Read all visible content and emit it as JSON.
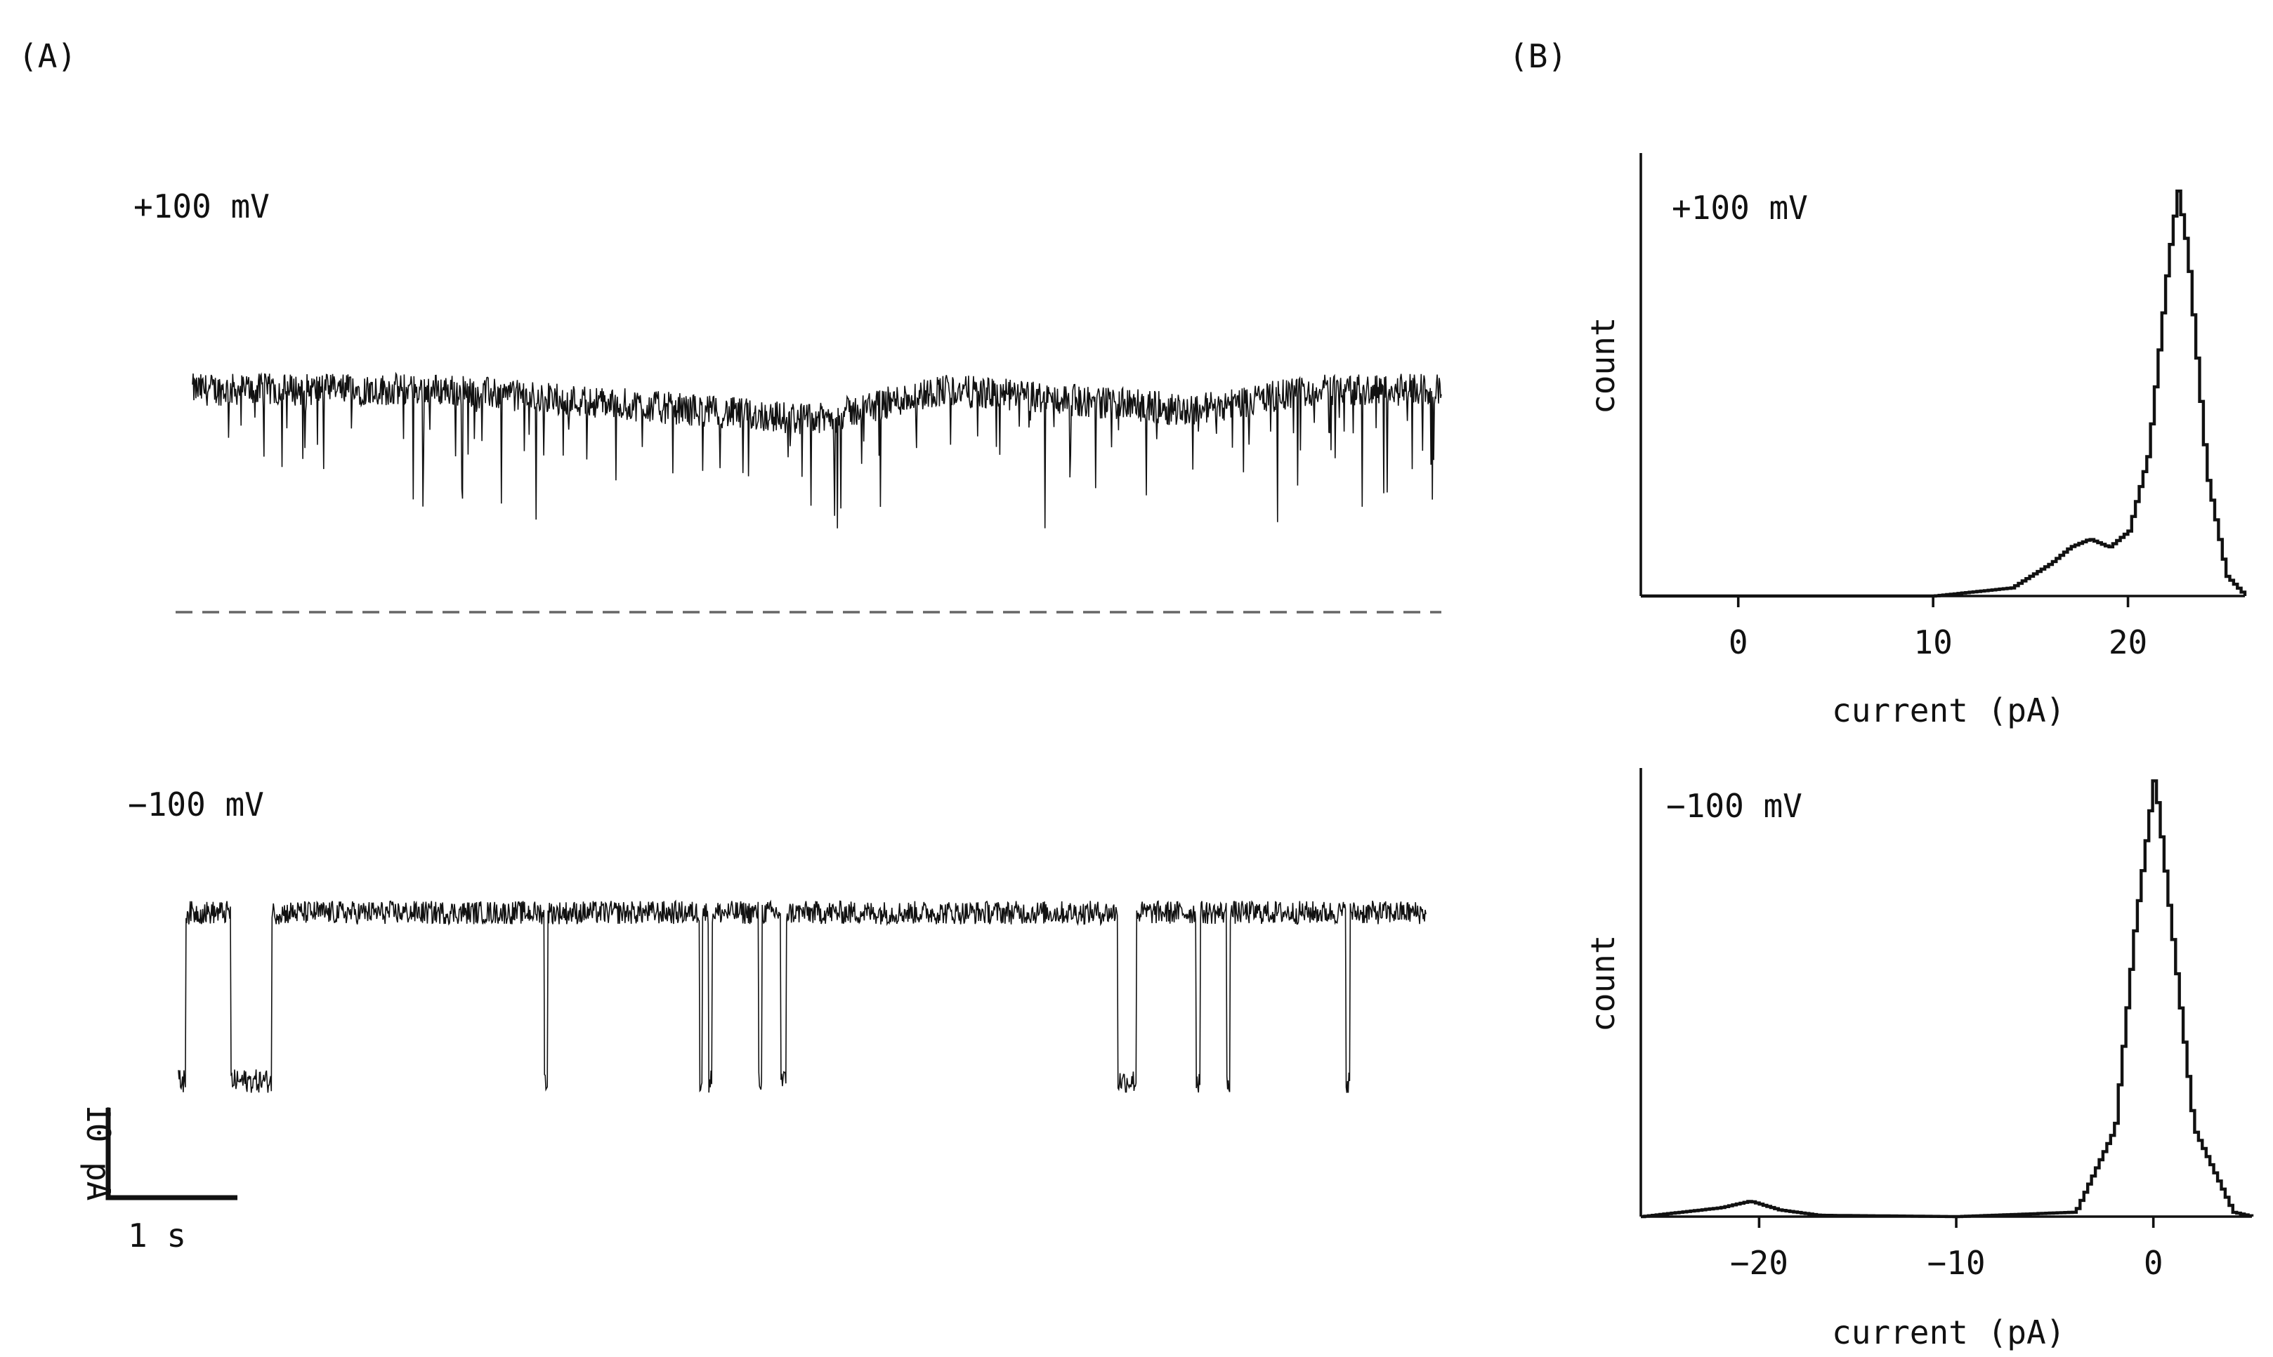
{
  "panel_labels": {
    "a": "(A)",
    "b": "(B)"
  },
  "traces": {
    "top": {
      "label": "+100 mV"
    },
    "bottom": {
      "label": "−100 mV"
    },
    "scale_bar": {
      "y_label": "10 pA",
      "x_label": "1 s"
    }
  },
  "chart_data": [
    {
      "type": "line",
      "label": "+100 mV",
      "xlabel": "",
      "ylabel": "",
      "x_unit": "s",
      "y_unit": "pA",
      "x": [
        0,
        1,
        2,
        3,
        4,
        5,
        6,
        7,
        8,
        9,
        10
      ],
      "values": [
        22,
        22,
        22,
        21,
        20,
        19,
        22,
        21,
        20,
        22,
        22
      ],
      "open_level": 22,
      "baseline": 0,
      "grid": false
    },
    {
      "type": "line",
      "label": "−100 mV",
      "xlabel": "",
      "ylabel": "",
      "x_unit": "s",
      "y_unit": "pA",
      "x": [
        0,
        0.5,
        0.9,
        1.5,
        4,
        6.5,
        7.8,
        9,
        10
      ],
      "values": [
        0,
        0,
        -20,
        0,
        0,
        0,
        -20,
        0,
        0
      ],
      "closed_level": 0,
      "grid": false
    },
    {
      "type": "bar",
      "label": "+100 mV",
      "xlabel": "current (pA)",
      "ylabel": "count",
      "xlim": [
        -5,
        26
      ],
      "xticks": [
        "0",
        "10",
        "20"
      ],
      "x": [
        10,
        12,
        14,
        16,
        17,
        18,
        19,
        20,
        21,
        22,
        22.5,
        23,
        24,
        25,
        26
      ],
      "values": [
        0,
        0.01,
        0.02,
        0.08,
        0.12,
        0.14,
        0.12,
        0.16,
        0.35,
        0.82,
        1.0,
        0.85,
        0.3,
        0.05,
        0
      ],
      "grid": false
    },
    {
      "type": "bar",
      "label": "−100 mV",
      "xlabel": "current (pA)",
      "ylabel": "count",
      "xlim": [
        -26,
        5
      ],
      "xticks": [
        "−20",
        "−10",
        "0"
      ],
      "x": [
        -26,
        -24,
        -22,
        -20.5,
        -19,
        -17,
        -10,
        -4,
        -2,
        -1,
        0,
        1,
        2,
        4,
        5
      ],
      "values": [
        0,
        0.01,
        0.02,
        0.035,
        0.015,
        0.003,
        0,
        0.01,
        0.2,
        0.65,
        1.0,
        0.6,
        0.2,
        0.01,
        0
      ],
      "grid": false
    }
  ]
}
